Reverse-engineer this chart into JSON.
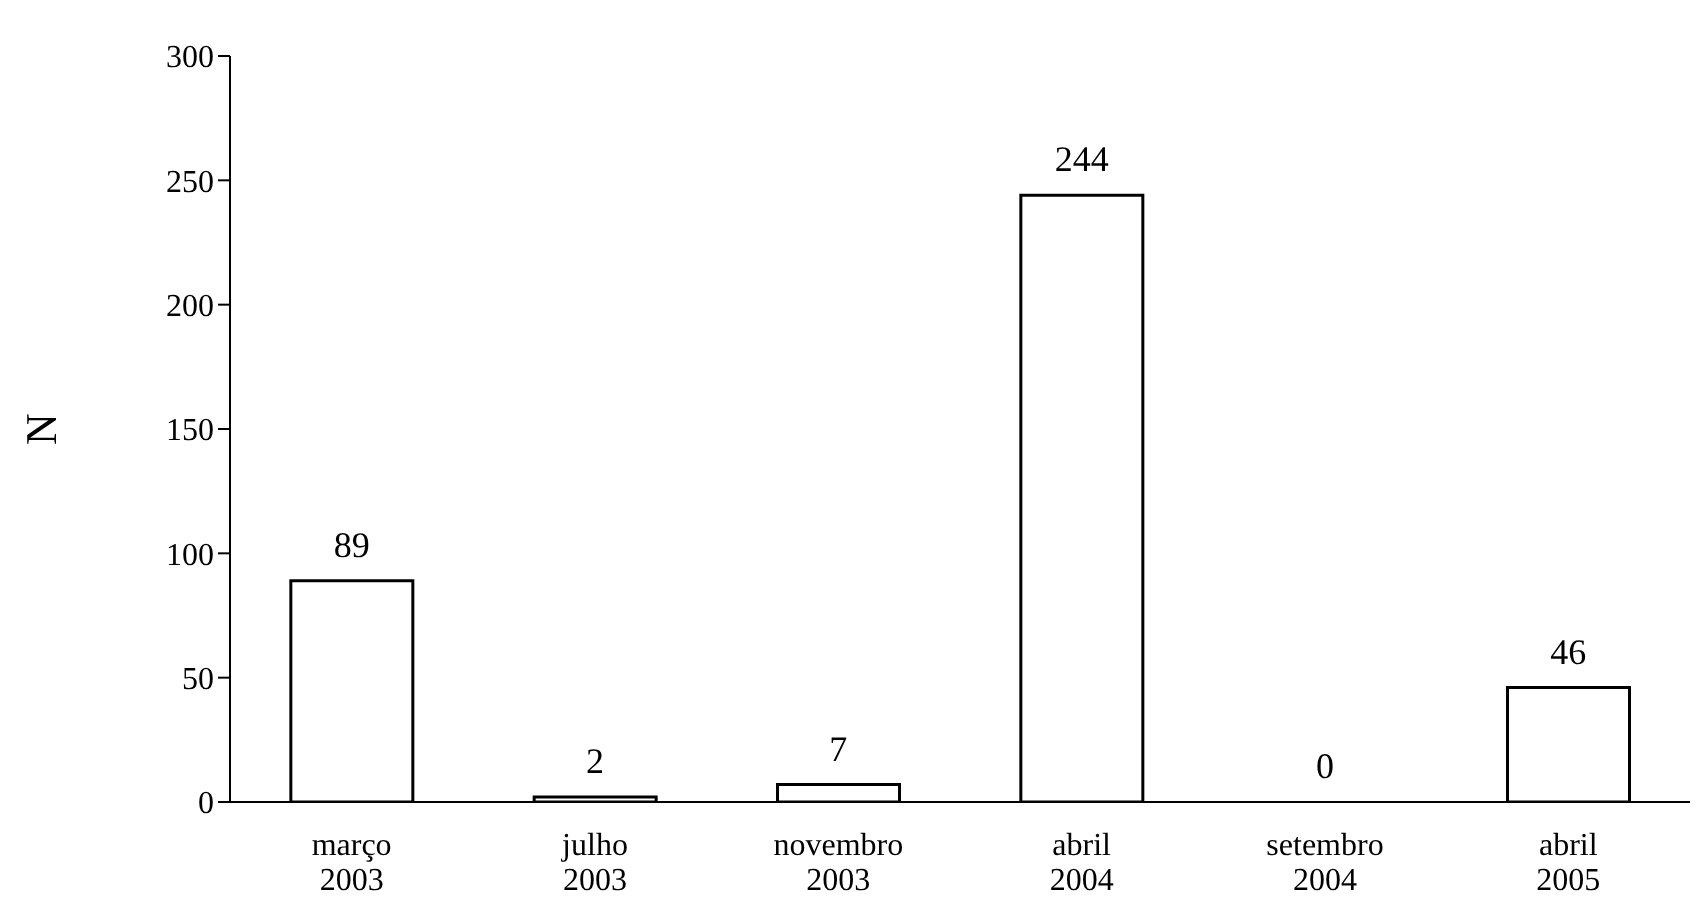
{
  "chart_data": {
    "type": "bar",
    "ylabel": "N",
    "categories": [
      "março 2003",
      "julho 2003",
      "novembro 2003",
      "abril 2004",
      "setembro 2004",
      "abril 2005"
    ],
    "values": [
      89,
      2,
      7,
      244,
      0,
      46
    ],
    "color": "#ffffff",
    "ylim": [
      0,
      300
    ],
    "yticks": [
      0,
      50,
      100,
      150,
      200,
      250,
      300
    ],
    "data_labels": true,
    "grid": false
  }
}
